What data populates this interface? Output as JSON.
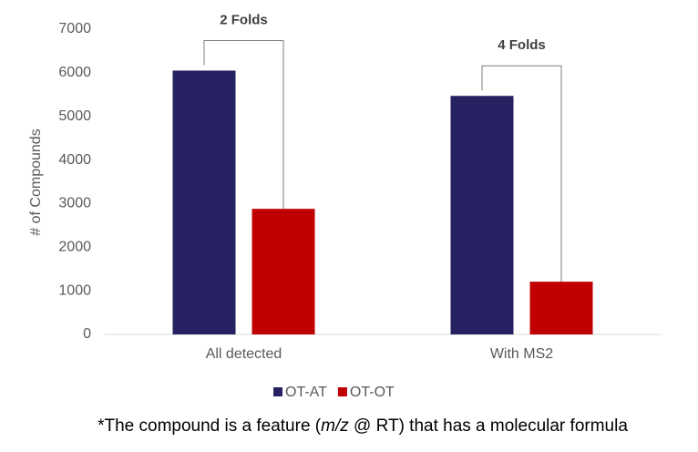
{
  "chart_data": {
    "type": "bar",
    "y_label": "# of Compounds",
    "categories": [
      "All detected",
      "With MS2"
    ],
    "series": [
      {
        "name": "OT-AT",
        "color": "#262262",
        "values": [
          6050,
          5470
        ]
      },
      {
        "name": "OT-OT",
        "color": "#c00000",
        "values": [
          2880,
          1210
        ]
      }
    ],
    "annotations": [
      "2 Folds",
      "4 Folds"
    ],
    "ylim": [
      0,
      7000
    ],
    "yticks": [
      0,
      1000,
      2000,
      3000,
      4000,
      5000,
      6000,
      7000
    ],
    "grid": false,
    "legend": "bottom",
    "footnote": [
      "*The compound is a feature (",
      "m/z",
      " @ RT) that has a molecular formula"
    ]
  }
}
